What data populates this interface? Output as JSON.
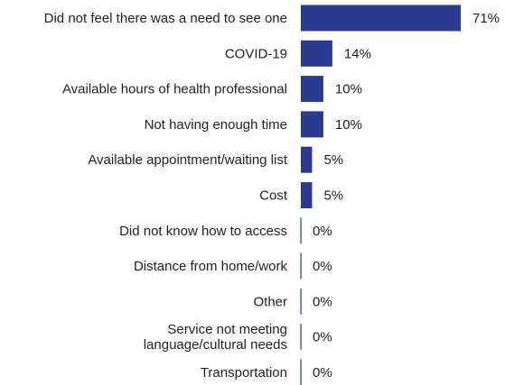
{
  "chart_data": {
    "type": "bar",
    "orientation": "horizontal",
    "categories": [
      [
        "Did not feel there was a need to see one"
      ],
      [
        "COVID-19"
      ],
      [
        "Available hours of health professional"
      ],
      [
        "Not having enough time"
      ],
      [
        "Available appointment/waiting list"
      ],
      [
        "Cost"
      ],
      [
        "Did not know how to access"
      ],
      [
        "Distance from home/work"
      ],
      [
        "Other"
      ],
      [
        "Service not meeting",
        "language/cultural needs"
      ],
      [
        "Transportation"
      ]
    ],
    "values": [
      71,
      14,
      10,
      10,
      5,
      5,
      0,
      0,
      0,
      0,
      0
    ],
    "value_labels": [
      "71%",
      "14%",
      "10%",
      "10%",
      "5%",
      "5%",
      "0%",
      "0%",
      "0%",
      "0%",
      "0%"
    ],
    "unit": "%",
    "xlim": [
      0,
      71
    ],
    "title": "",
    "xlabel": "",
    "ylabel": "",
    "grid": false,
    "legend": "none",
    "bar_color": "#2b3990",
    "axis_color": "#2b3990",
    "text_color": "#222222"
  }
}
